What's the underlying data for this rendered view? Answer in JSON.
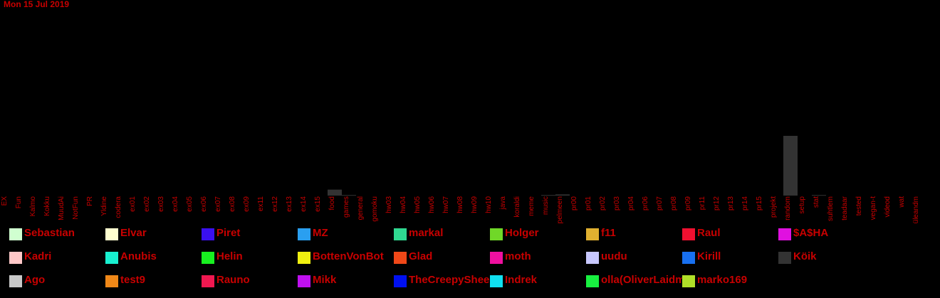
{
  "date_label": "Mon 15 Jul 2019",
  "chart_data": {
    "type": "bar",
    "title": "Mon 15 Jul 2019",
    "categories": [
      "EX",
      "Fun",
      "Kalmo",
      "Kokku",
      "MuudAi",
      "NotFun",
      "PR",
      "Yldine",
      "codera",
      "ex01",
      "ex02",
      "ex03",
      "ex04",
      "ex05",
      "ex06",
      "ex07",
      "ex08",
      "ex09",
      "ex11",
      "ex12",
      "ex13",
      "ex14",
      "ex15",
      "food",
      "games",
      "general",
      "gomoku",
      "hw03",
      "hw04",
      "hw05",
      "hw06",
      "hw07",
      "hw08",
      "hw09",
      "hw10",
      "java",
      "koraldi",
      "meme",
      "music",
      "pelmeen",
      "pr00",
      "pr01",
      "pr02",
      "pr03",
      "pr04",
      "pr06",
      "pr07",
      "pr08",
      "pr09",
      "pr11",
      "pr12",
      "pr13",
      "pr14",
      "pr15",
      "projekt",
      "random",
      "setup",
      "stat",
      "suhtlem",
      "teadaar",
      "tested",
      "vegan-t",
      "videod",
      "wat",
      "üleandm"
    ],
    "series": [
      {
        "name": "Köik",
        "color": "#333333",
        "values": [
          0,
          0,
          0,
          0,
          0,
          0,
          0,
          0,
          0,
          0,
          0,
          0,
          0,
          0,
          0,
          0,
          0,
          0,
          0,
          0,
          0,
          0,
          0,
          10,
          1,
          0,
          0,
          0,
          0,
          0,
          0,
          0,
          0,
          0,
          0,
          0,
          0,
          0,
          1,
          2,
          0,
          0,
          0,
          0,
          0,
          0,
          0,
          0,
          0,
          0,
          0,
          0,
          0,
          0,
          0,
          100,
          0,
          1,
          0,
          0,
          0,
          0,
          0,
          0,
          0
        ]
      }
    ],
    "ylim": [
      0,
      100
    ],
    "xlabel": "",
    "ylabel": "",
    "grid": false,
    "legend_position": "bottom"
  },
  "legend": [
    {
      "name": "Sebastian",
      "color": "#d0ffd0"
    },
    {
      "name": "Elvar",
      "color": "#ffffd0"
    },
    {
      "name": "Piret",
      "color": "#3a10f0"
    },
    {
      "name": "MZ",
      "color": "#2a9ff0"
    },
    {
      "name": "markal",
      "color": "#30d890"
    },
    {
      "name": "Holger",
      "color": "#70d828"
    },
    {
      "name": "f11",
      "color": "#e0b030"
    },
    {
      "name": "Raul",
      "color": "#f01030"
    },
    {
      "name": "$A$HA",
      "color": "#e010e0"
    },
    {
      "name": "Kadri",
      "color": "#ffc8c8"
    },
    {
      "name": "Anubis",
      "color": "#18f0d0"
    },
    {
      "name": "Helin",
      "color": "#18f020"
    },
    {
      "name": "BottenVonBot",
      "color": "#f0f010"
    },
    {
      "name": "Glad",
      "color": "#f04818"
    },
    {
      "name": "moth",
      "color": "#f010a0"
    },
    {
      "name": "uudu",
      "color": "#c8c8ff"
    },
    {
      "name": "Kirill",
      "color": "#1870f0"
    },
    {
      "name": "Köik",
      "color": "#333333"
    },
    {
      "name": "Ago",
      "color": "#c8c8c8"
    },
    {
      "name": "test9",
      "color": "#f08818"
    },
    {
      "name": "Rauno",
      "color": "#f01850"
    },
    {
      "name": "Mikk",
      "color": "#c010f0"
    },
    {
      "name": "TheCreepySheep",
      "color": "#0010f0"
    },
    {
      "name": "Indrek",
      "color": "#10e0f0"
    },
    {
      "name": "olla(OliverLaidma)",
      "color": "#18f040"
    },
    {
      "name": "marko169",
      "color": "#b0e028"
    }
  ]
}
